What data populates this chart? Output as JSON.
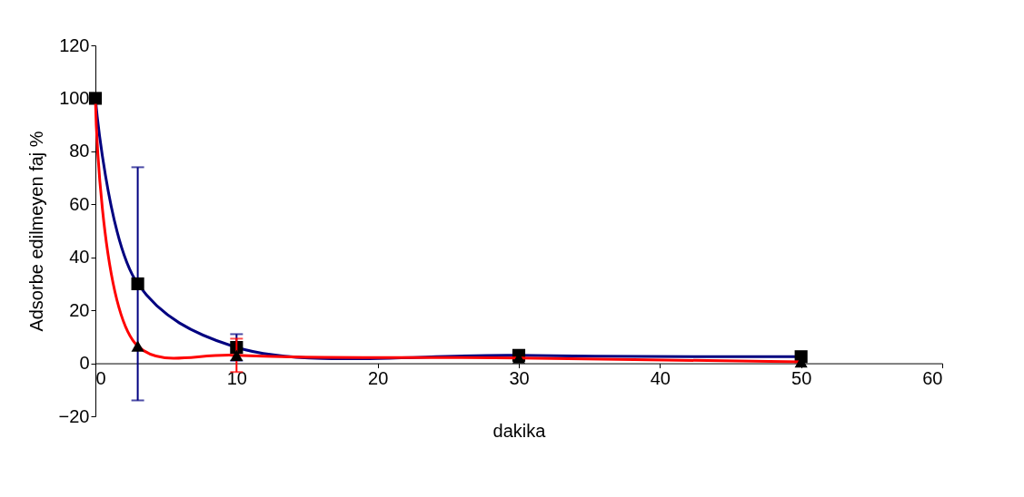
{
  "chart_data": {
    "type": "line",
    "xlabel": "dakika",
    "ylabel": "Adsorbe edilmeyen faj %",
    "xlim": [
      0,
      60
    ],
    "xticks": [
      0,
      10,
      20,
      30,
      40,
      50,
      60
    ],
    "ylim": [
      -20,
      120
    ],
    "yticks": [
      -20,
      0,
      20,
      40,
      60,
      80,
      100,
      120
    ],
    "grid": false,
    "line_style": "solid",
    "series": [
      {
        "color": "#000080",
        "marker": "square",
        "x": [
          0,
          3,
          10,
          30,
          50
        ],
        "values": [
          100,
          30,
          6,
          3,
          2.5
        ],
        "colors": [
          "#000000",
          "#000000",
          "#000000",
          "#000000",
          "#000000"
        ],
        "errors": [
          null,
          44,
          5,
          null,
          null
        ]
      },
      {
        "color": "#ff0000",
        "marker": "triangle",
        "x": [
          0,
          3,
          10,
          30,
          50
        ],
        "values": [
          100,
          6.5,
          3,
          2,
          0.5
        ],
        "colors": [
          "#000000",
          "#000000",
          "#000000",
          "#000000",
          "#000000"
        ],
        "errors": [
          null,
          null,
          6.3,
          null,
          null
        ]
      }
    ]
  }
}
